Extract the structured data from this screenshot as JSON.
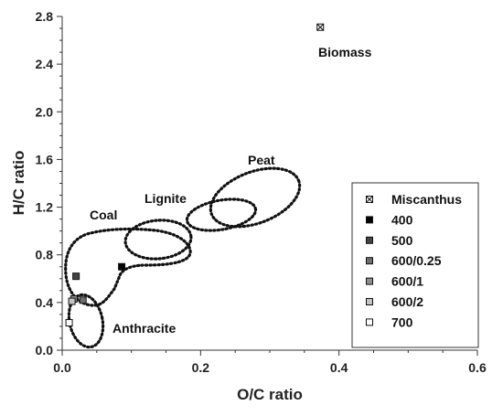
{
  "chart_data": {
    "type": "scatter",
    "xlabel": "O/C ratio",
    "ylabel": "H/C ratio",
    "xlim": [
      0.0,
      0.6
    ],
    "ylim": [
      0.0,
      2.8
    ],
    "x_ticks": [
      "0.0",
      "0.2",
      "0.4",
      "0.6"
    ],
    "y_ticks": [
      "0.0",
      "0.4",
      "0.8",
      "1.2",
      "1.6",
      "2.0",
      "2.4",
      "2.8"
    ],
    "grid": false,
    "legend_position": "right",
    "regions": [
      {
        "name": "Biomass"
      },
      {
        "name": "Peat"
      },
      {
        "name": "Lignite"
      },
      {
        "name": "Coal"
      },
      {
        "name": "Anthracite"
      }
    ],
    "series": [
      {
        "name": "Miscanthus",
        "color": "#ffffff",
        "marker": "crossed-square",
        "points": [
          {
            "x": 0.373,
            "y": 2.71
          }
        ]
      },
      {
        "name": "400",
        "color": "#000000",
        "marker": "square",
        "points": [
          {
            "x": 0.086,
            "y": 0.7
          }
        ]
      },
      {
        "name": "500",
        "color": "#444444",
        "marker": "square",
        "points": [
          {
            "x": 0.02,
            "y": 0.62
          }
        ]
      },
      {
        "name": "600/0.25",
        "color": "#6e6e6e",
        "marker": "square",
        "points": [
          {
            "x": 0.03,
            "y": 0.42
          }
        ]
      },
      {
        "name": "600/1",
        "color": "#8e8e8e",
        "marker": "square",
        "points": [
          {
            "x": 0.017,
            "y": 0.43
          }
        ]
      },
      {
        "name": "600/2",
        "color": "#c4c4c4",
        "marker": "square",
        "points": [
          {
            "x": 0.014,
            "y": 0.41
          }
        ]
      },
      {
        "name": "700",
        "color": "#ffffff",
        "marker": "square",
        "points": [
          {
            "x": 0.01,
            "y": 0.23
          }
        ]
      }
    ]
  }
}
